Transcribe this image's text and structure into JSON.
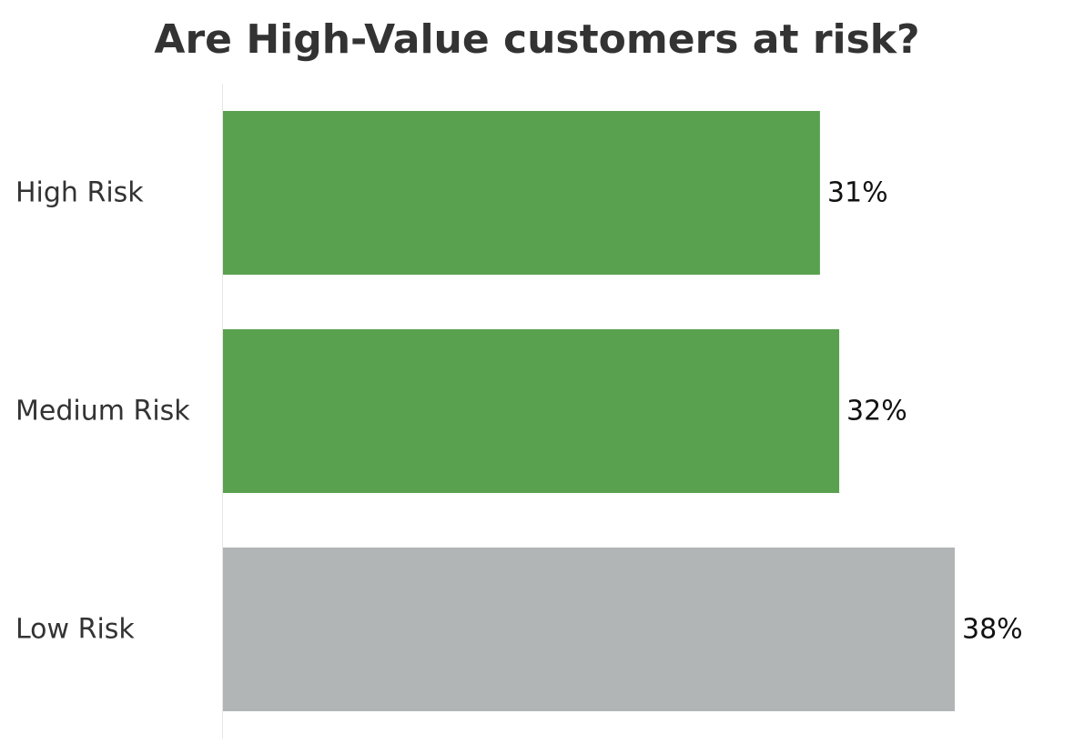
{
  "chart_data": {
    "type": "bar",
    "orientation": "horizontal",
    "title": "Are High-Value customers at risk?",
    "categories": [
      "High Risk",
      "Medium Risk",
      "Low Risk"
    ],
    "values": [
      31,
      32,
      38
    ],
    "value_labels": [
      "31%",
      "32%",
      "38%"
    ],
    "unit": "%",
    "colors": [
      "#59a14f",
      "#59a14f",
      "#b2b5b6"
    ],
    "xlim": [
      0,
      44
    ],
    "grid": false,
    "legend": "none"
  }
}
